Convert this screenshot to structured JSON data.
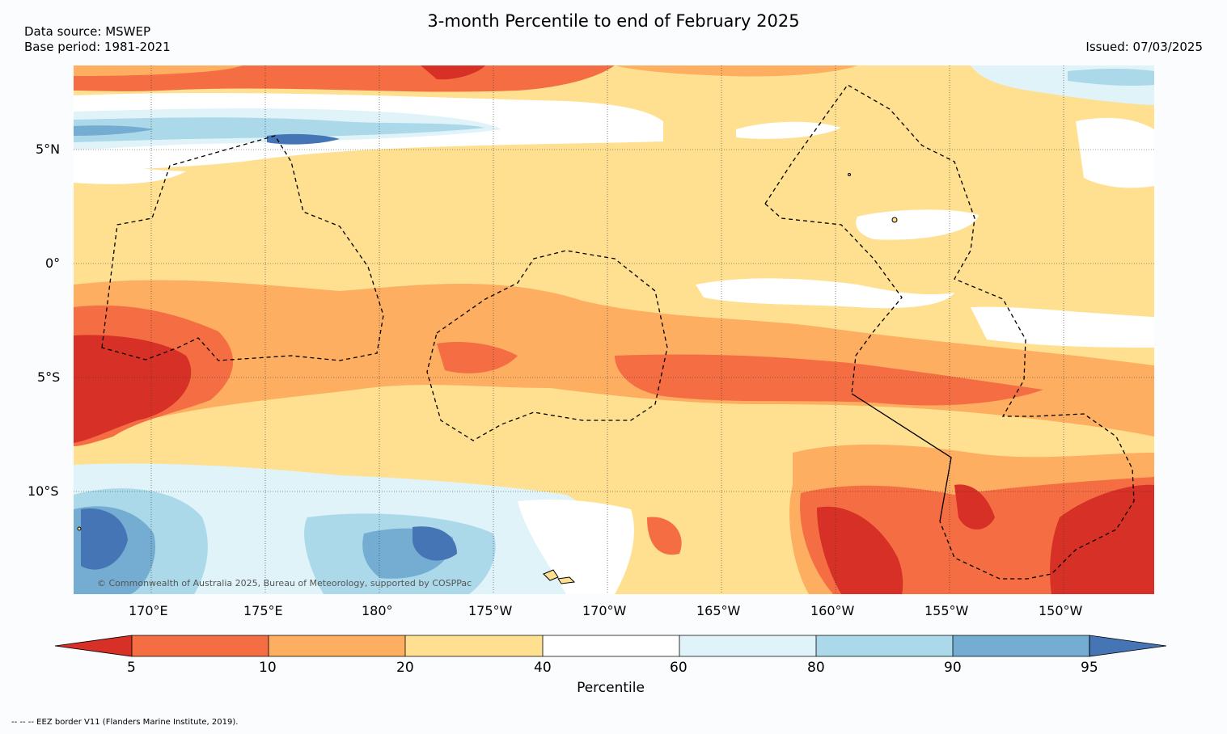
{
  "title": "3-month Percentile to end of February 2025",
  "data_source": "Data source: MSWEP",
  "base_period": "Base period: 1981-2021",
  "issued": "Issued: 07/03/2025",
  "credit": "© Commonwealth of Australia 2025, Bureau of Meteorology, supported by COSPPac",
  "footnote": "--  --  -- EEZ border V11 (Flanders Marine Institute, 2019).",
  "lat_labels": [
    "5°N",
    "0°",
    "5°S",
    "10°S"
  ],
  "lon_labels": [
    "170°E",
    "175°E",
    "180°",
    "175°W",
    "170°W",
    "165°W",
    "160°W",
    "155°W",
    "150°W"
  ],
  "colorbar": {
    "label": "Percentile",
    "ticks": [
      "5",
      "10",
      "20",
      "40",
      "60",
      "80",
      "90",
      "95"
    ],
    "colors": [
      "#d73027",
      "#f46d43",
      "#fdae61",
      "#fee090",
      "#ffffff",
      "#e0f3f8",
      "#abd9e9",
      "#74add1",
      "#4575b4"
    ]
  },
  "palette": {
    "p_lt5": "#d73027",
    "p5_10": "#f46d43",
    "p10_20": "#fdae61",
    "p20_40": "#fee090",
    "p40_60": "#ffffff",
    "p60_80": "#e0f3f8",
    "p80_90": "#abd9e9",
    "p90_95": "#74add1",
    "p_gt95": "#4575b4"
  }
}
